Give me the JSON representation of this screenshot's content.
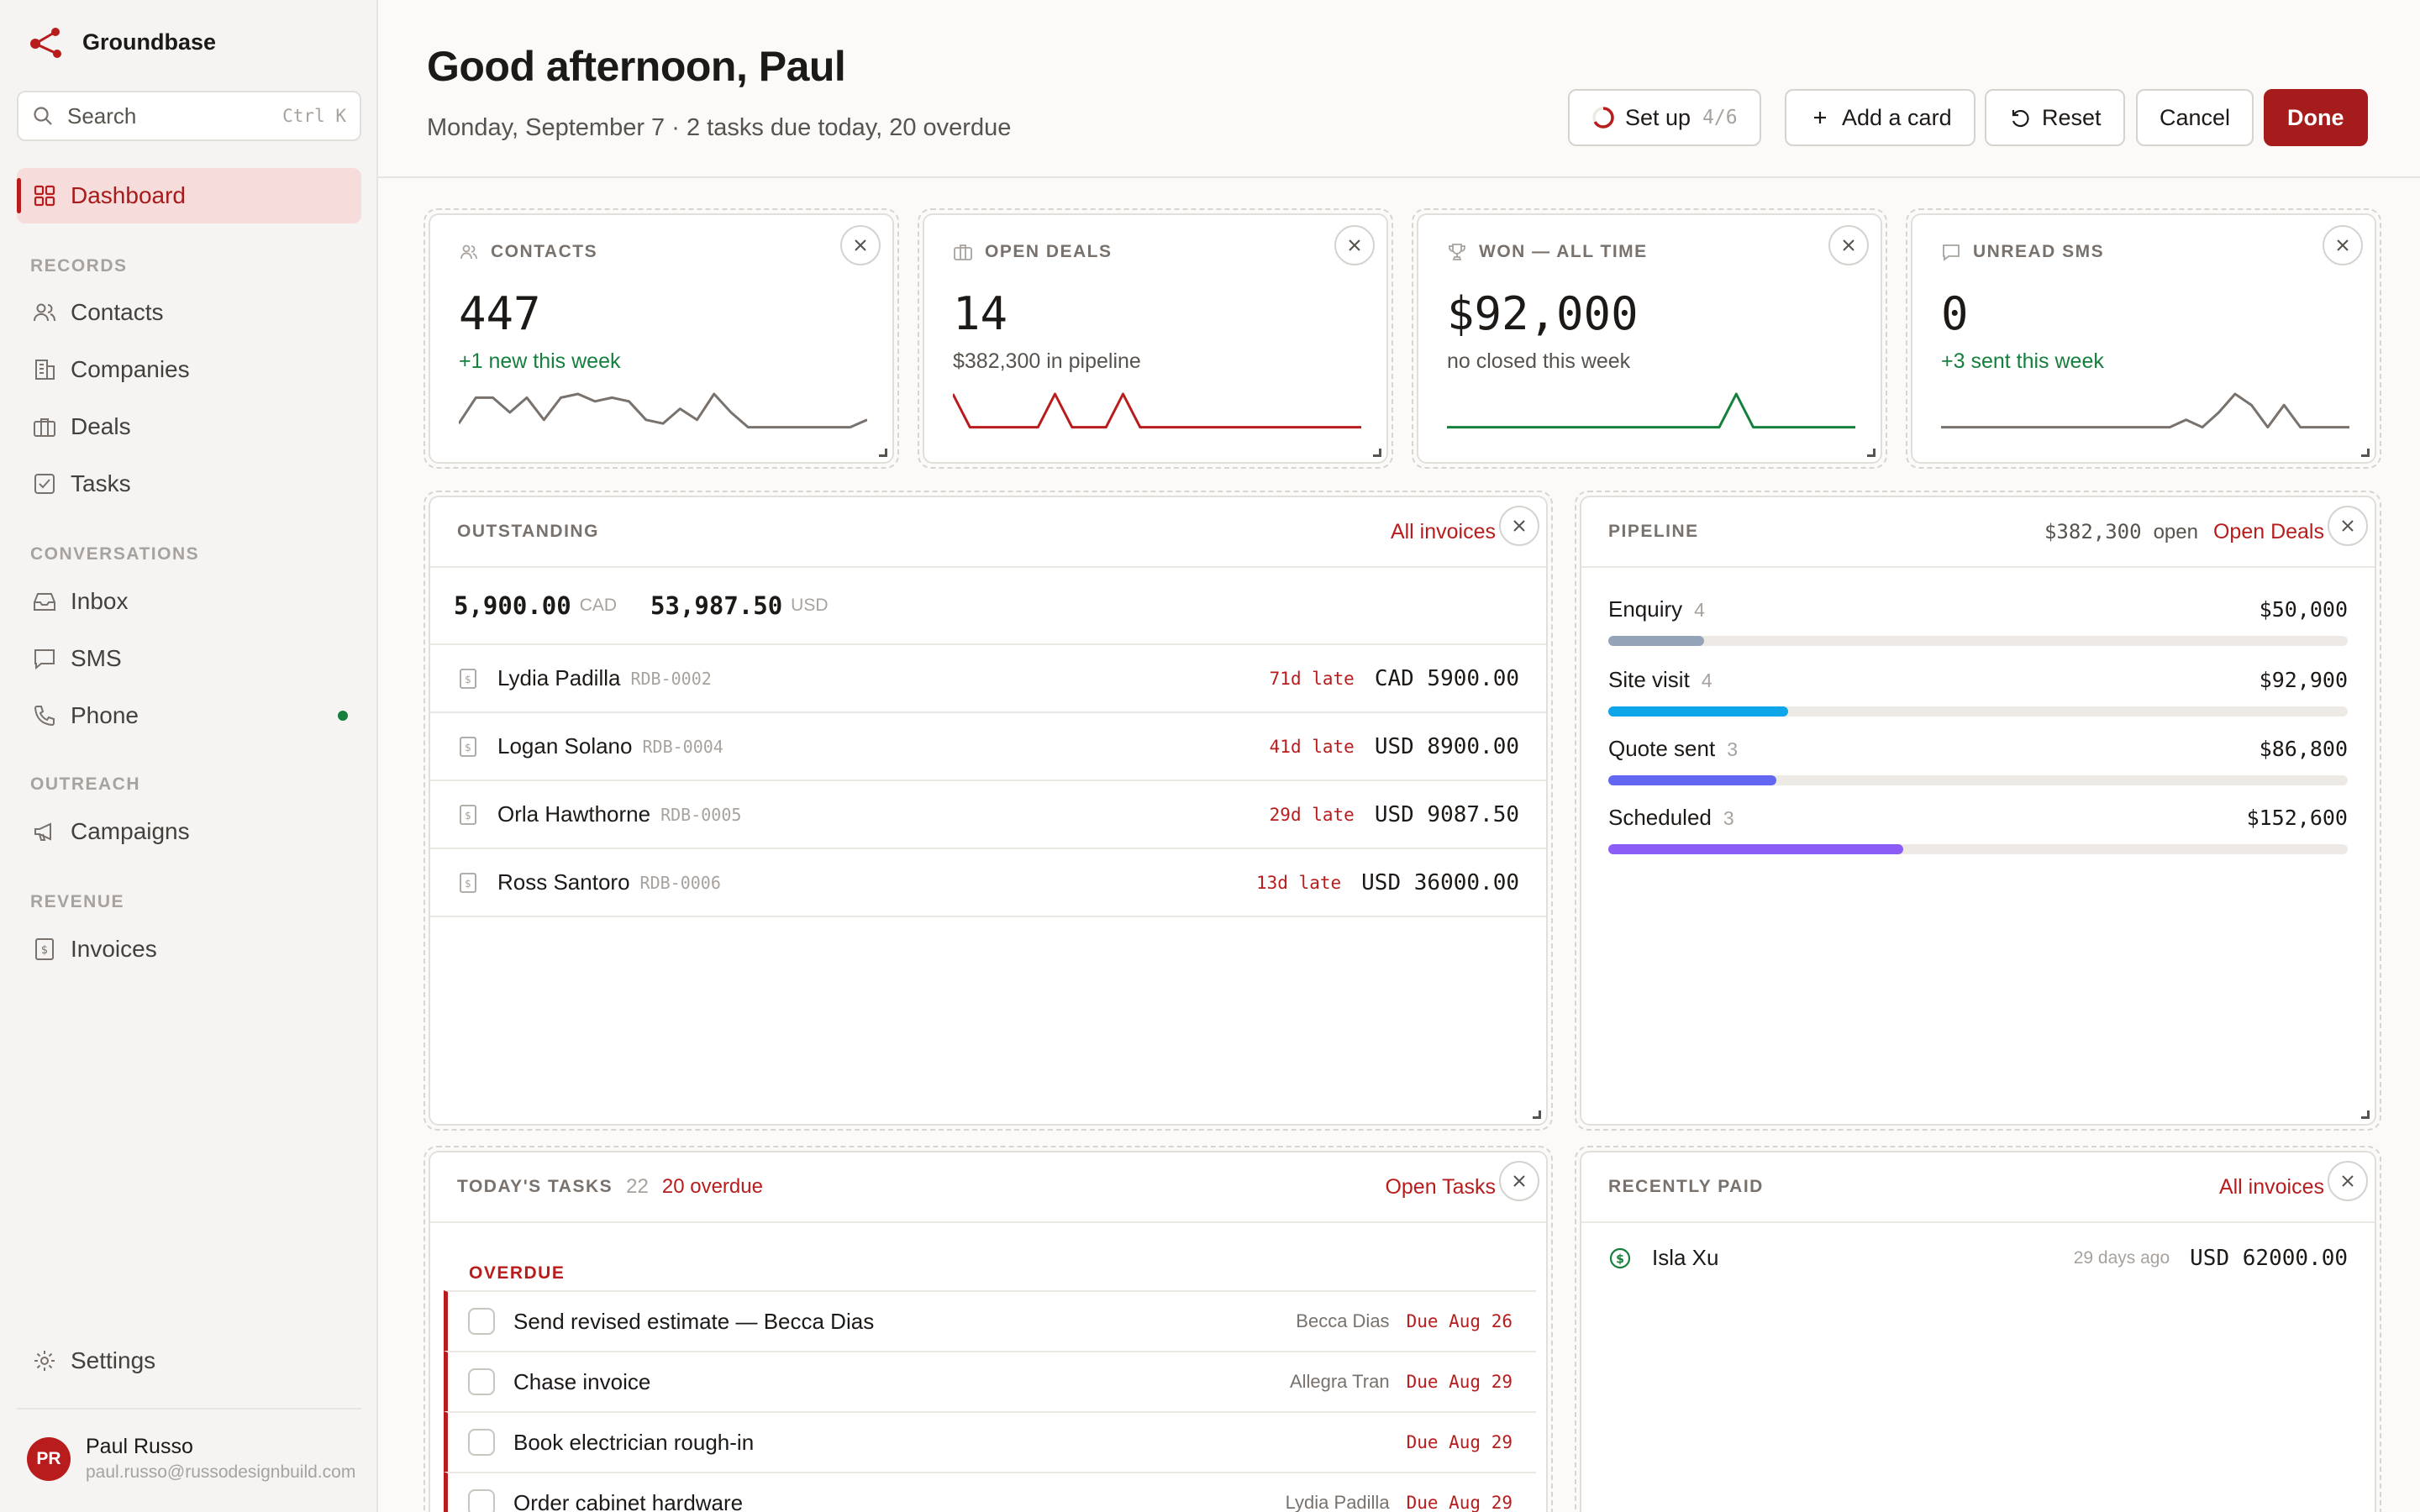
{
  "app": {
    "name": "Groundbase"
  },
  "search": {
    "label": "Search",
    "shortcut": "Ctrl K"
  },
  "nav": {
    "active": "Dashboard",
    "sections": {
      "records": "RECORDS",
      "conversations": "CONVERSATIONS",
      "outreach": "OUTREACH",
      "revenue": "REVENUE"
    },
    "items": {
      "contacts": "Contacts",
      "companies": "Companies",
      "deals": "Deals",
      "tasks": "Tasks",
      "inbox": "Inbox",
      "sms": "SMS",
      "phone": "Phone",
      "campaigns": "Campaigns",
      "invoices": "Invoices",
      "settings": "Settings"
    }
  },
  "user": {
    "name": "Paul Russo",
    "email": "paul.russo@russodesignbuild.com",
    "initials": "PR"
  },
  "header": {
    "greeting": "Good afternoon, Paul",
    "subline": "Monday, September 7 · 2 tasks due today, 20 overdue",
    "setup_label": "Set up",
    "setup_count": "4/6",
    "setup_progress": 0.67,
    "add_card": "Add a card",
    "reset": "Reset",
    "cancel": "Cancel",
    "done": "Done"
  },
  "stats": [
    {
      "label": "CONTACTS",
      "value": "447",
      "sub": "+1 new this week",
      "sub_color": "#15803d",
      "spark_color": "#78716c",
      "spark": [
        0.2,
        0.9,
        0.9,
        0.5,
        0.9,
        0.3,
        0.9,
        1.0,
        0.8,
        0.9,
        0.8,
        0.3,
        0.2,
        0.6,
        0.3,
        1.0,
        0.5,
        0.1,
        0.1,
        0.1,
        0.1,
        0.1,
        0.1,
        0.1,
        0.3
      ]
    },
    {
      "label": "OPEN DEALS",
      "value": "14",
      "sub": "$382,300 in pipeline",
      "sub_color": "#57534e",
      "spark_color": "#b91c1c",
      "spark": [
        1.0,
        0.1,
        0.1,
        0.1,
        0.1,
        0.1,
        1.0,
        0.1,
        0.1,
        0.1,
        1.0,
        0.1,
        0.1,
        0.1,
        0.1,
        0.1,
        0.1,
        0.1,
        0.1,
        0.1,
        0.1,
        0.1,
        0.1,
        0.1,
        0.1
      ]
    },
    {
      "label": "WON — ALL TIME",
      "value": "$92,000",
      "sub": "no closed this week",
      "sub_color": "#57534e",
      "spark_color": "#15803d",
      "spark": [
        0.1,
        0.1,
        0.1,
        0.1,
        0.1,
        0.1,
        0.1,
        0.1,
        0.1,
        0.1,
        0.1,
        0.1,
        0.1,
        0.1,
        0.1,
        0.1,
        0.1,
        1.0,
        0.1,
        0.1,
        0.1,
        0.1,
        0.1,
        0.1,
        0.1
      ]
    },
    {
      "label": "UNREAD SMS",
      "value": "0",
      "sub": "+3 sent this week",
      "sub_color": "#15803d",
      "spark_color": "#78716c",
      "spark": [
        0.1,
        0.1,
        0.1,
        0.1,
        0.1,
        0.1,
        0.1,
        0.1,
        0.1,
        0.1,
        0.1,
        0.1,
        0.1,
        0.1,
        0.1,
        0.3,
        0.1,
        0.5,
        1.0,
        0.7,
        0.1,
        0.7,
        0.1,
        0.1,
        0.1,
        0.1
      ]
    }
  ],
  "outstanding": {
    "title": "OUTSTANDING",
    "link": "All invoices",
    "totals": [
      {
        "amount": "5,900.00",
        "currency": "CAD"
      },
      {
        "amount": "53,987.50",
        "currency": "USD"
      }
    ],
    "rows": [
      {
        "name": "Lydia Padilla",
        "id": "RDB-0002",
        "late": "71d late",
        "amount": "CAD 5900.00"
      },
      {
        "name": "Logan Solano",
        "id": "RDB-0004",
        "late": "41d late",
        "amount": "USD 8900.00"
      },
      {
        "name": "Orla Hawthorne",
        "id": "RDB-0005",
        "late": "29d late",
        "amount": "USD 9087.50"
      },
      {
        "name": "Ross Santoro",
        "id": "RDB-0006",
        "late": "13d late",
        "amount": "USD 36000.00"
      }
    ]
  },
  "pipeline": {
    "title": "PIPELINE",
    "open_amount": "$382,300",
    "open_label": "open",
    "link": "Open Deals",
    "stages": [
      {
        "name": "Enquiry",
        "count": "4",
        "amount": "$50,000",
        "share": 0.13,
        "color": "#94a3b8"
      },
      {
        "name": "Site visit",
        "count": "4",
        "amount": "$92,900",
        "share": 0.243,
        "color": "#0ea5e9"
      },
      {
        "name": "Quote sent",
        "count": "3",
        "amount": "$86,800",
        "share": 0.227,
        "color": "#6366f1"
      },
      {
        "name": "Scheduled",
        "count": "3",
        "amount": "$152,600",
        "share": 0.399,
        "color": "#8b5cf6"
      }
    ]
  },
  "tasks": {
    "title": "TODAY'S TASKS",
    "count": "22",
    "overdue": "20 overdue",
    "link": "Open Tasks",
    "group": "OVERDUE",
    "rows": [
      {
        "title": "Send revised estimate — Becca Dias",
        "person": "Becca Dias",
        "due": "Due Aug 26"
      },
      {
        "title": "Chase invoice",
        "person": "Allegra Tran",
        "due": "Due Aug 29"
      },
      {
        "title": "Book electrician rough-in",
        "person": "",
        "due": "Due Aug 29"
      },
      {
        "title": "Order cabinet hardware",
        "person": "Lydia Padilla",
        "due": "Due Aug 29"
      }
    ]
  },
  "recently_paid": {
    "title": "RECENTLY PAID",
    "link": "All invoices",
    "rows": [
      {
        "name": "Isla Xu",
        "when": "29 days ago",
        "amount": "USD 62000.00"
      }
    ]
  }
}
